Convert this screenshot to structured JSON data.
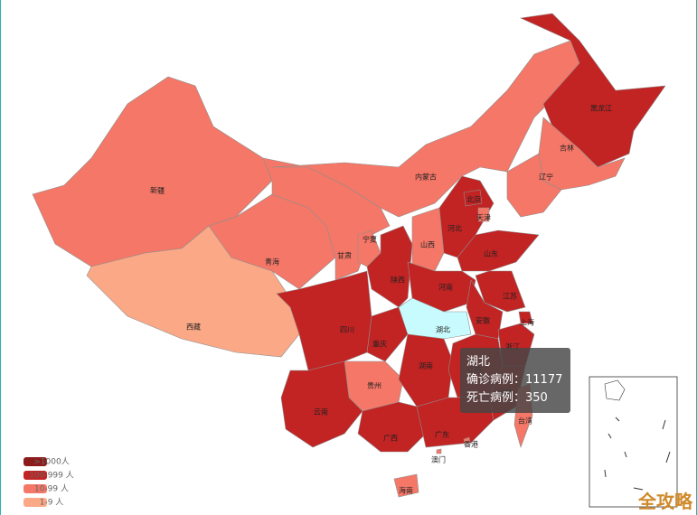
{
  "map": {
    "legend": [
      {
        "label": ">1000人",
        "color": "#8c1c1c"
      },
      {
        "label": "100-999 人",
        "color": "#c22323"
      },
      {
        "label": "10-99 人",
        "color": "#f47767"
      },
      {
        "label": "1-9 人",
        "color": "#fba886"
      }
    ],
    "highlight_color": "#c8fbfd",
    "provinces": [
      {
        "name": "新疆",
        "level": 2
      },
      {
        "name": "西藏",
        "level": 3
      },
      {
        "name": "青海",
        "level": 2
      },
      {
        "name": "甘肃",
        "level": 2
      },
      {
        "name": "内蒙古",
        "level": 2
      },
      {
        "name": "黑龙江",
        "level": 1
      },
      {
        "name": "吉林",
        "level": 2
      },
      {
        "name": "辽宁",
        "level": 2
      },
      {
        "name": "宁夏",
        "level": 2
      },
      {
        "name": "陕西",
        "level": 1
      },
      {
        "name": "山西",
        "level": 2
      },
      {
        "name": "河北",
        "level": 1
      },
      {
        "name": "北京",
        "level": 1
      },
      {
        "name": "天津",
        "level": 2
      },
      {
        "name": "山东",
        "level": 1
      },
      {
        "name": "河南",
        "level": 1
      },
      {
        "name": "江苏",
        "level": 1
      },
      {
        "name": "安徽",
        "level": 1
      },
      {
        "name": "上海",
        "level": 1
      },
      {
        "name": "浙江",
        "level": 1
      },
      {
        "name": "湖北",
        "level": 0,
        "highlighted": true
      },
      {
        "name": "重庆",
        "level": 1
      },
      {
        "name": "四川",
        "level": 1
      },
      {
        "name": "贵州",
        "level": 2
      },
      {
        "name": "湖南",
        "level": 1
      },
      {
        "name": "江西",
        "level": 1
      },
      {
        "name": "福建",
        "level": 1
      },
      {
        "name": "云南",
        "level": 1
      },
      {
        "name": "广西",
        "level": 1
      },
      {
        "name": "广东",
        "level": 1
      },
      {
        "name": "海南",
        "level": 2
      },
      {
        "name": "台湾",
        "level": 2
      },
      {
        "name": "香港",
        "level": 2
      },
      {
        "name": "澳门",
        "level": 2
      }
    ],
    "tooltip": {
      "title": "湖北",
      "rows": [
        {
          "label": "确诊病例：",
          "value": 11177
        },
        {
          "label": "死亡病例：",
          "value": 350
        }
      ]
    },
    "watermark": "全攻略"
  }
}
